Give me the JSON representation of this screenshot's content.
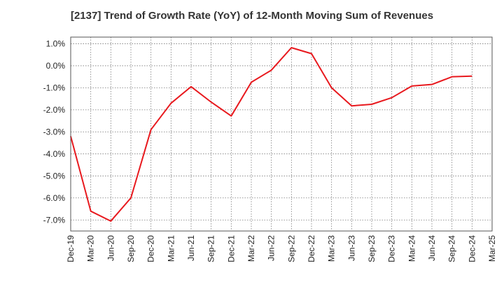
{
  "chart_data": {
    "type": "line",
    "title": "[2137]  Trend of Growth Rate (YoY) of 12-Month Moving Sum of Revenues",
    "xlabel": "",
    "ylabel": "",
    "ylim": [
      -7.5,
      1.3
    ],
    "y_ticks": [
      1.0,
      0.0,
      -1.0,
      -2.0,
      -3.0,
      -4.0,
      -5.0,
      -6.0,
      -7.0
    ],
    "y_tick_labels": [
      "1.0%",
      "0.0%",
      "-1.0%",
      "-2.0%",
      "-3.0%",
      "-4.0%",
      "-5.0%",
      "-6.0%",
      "-7.0%"
    ],
    "x_tick_labels": [
      "Dec-19",
      "Mar-20",
      "Jun-20",
      "Sep-20",
      "Dec-20",
      "Mar-21",
      "Jun-21",
      "Sep-21",
      "Dec-21",
      "Mar-22",
      "Jun-22",
      "Sep-22",
      "Dec-22",
      "Mar-23",
      "Jun-23",
      "Sep-23",
      "Dec-23",
      "Mar-24",
      "Jun-24",
      "Sep-24",
      "Dec-24",
      "Mar-25"
    ],
    "grid": true,
    "series": [
      {
        "color": "#e8191e",
        "x": [
          "Dec-19",
          "Mar-20",
          "Jun-20",
          "Sep-20",
          "Dec-20",
          "Mar-21",
          "Jun-21",
          "Sep-21",
          "Dec-21",
          "Mar-22",
          "Jun-22",
          "Sep-22",
          "Dec-22",
          "Mar-23",
          "Jun-23",
          "Sep-23",
          "Dec-23",
          "Mar-24",
          "Jun-24",
          "Sep-24",
          "Dec-24"
        ],
        "values": [
          -3.2,
          -6.6,
          -7.05,
          -6.0,
          -2.9,
          -1.7,
          -0.95,
          -1.65,
          -2.28,
          -0.75,
          -0.2,
          0.82,
          0.55,
          -1.0,
          -1.82,
          -1.75,
          -1.45,
          -0.92,
          -0.85,
          -0.5,
          -0.47
        ]
      }
    ]
  }
}
